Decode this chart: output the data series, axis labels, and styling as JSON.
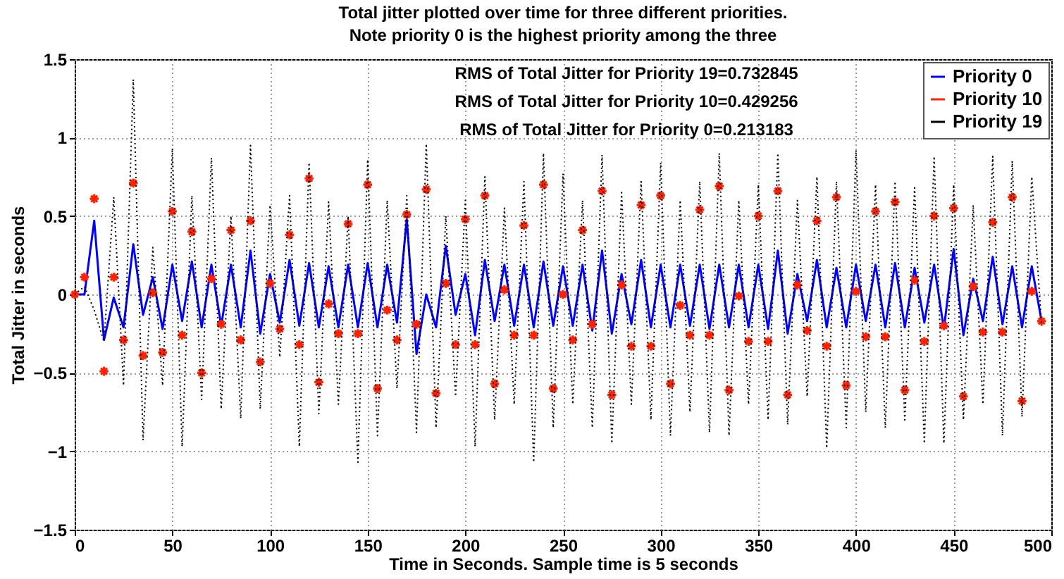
{
  "chart_data": {
    "type": "line",
    "title": "Total jitter plotted over time for three different priorities.\nNote priority 0 is the highest priority among the three",
    "xlabel": "Time in Seconds. Sample time is 5 seconds",
    "ylabel": "Total Jitter in seconds",
    "annotations": [
      "RMS of Total Jitter for Priority 19=0.732845",
      "RMS of Total Jitter for Priority 10=0.429256",
      "RMS of Total Jitter for Priority 0=0.213183"
    ],
    "x": [
      0,
      5,
      10,
      15,
      20,
      25,
      30,
      35,
      40,
      45,
      50,
      55,
      60,
      65,
      70,
      75,
      80,
      85,
      90,
      95,
      100,
      105,
      110,
      115,
      120,
      125,
      130,
      135,
      140,
      145,
      150,
      155,
      160,
      165,
      170,
      175,
      180,
      185,
      190,
      195,
      200,
      205,
      210,
      215,
      220,
      225,
      230,
      235,
      240,
      245,
      250,
      255,
      260,
      265,
      270,
      275,
      280,
      285,
      290,
      295,
      300,
      305,
      310,
      315,
      320,
      325,
      330,
      335,
      340,
      345,
      350,
      355,
      360,
      365,
      370,
      375,
      380,
      385,
      390,
      395,
      400,
      405,
      410,
      415,
      420,
      425,
      430,
      435,
      440,
      445,
      450,
      455,
      460,
      465,
      470,
      475,
      480,
      485,
      490,
      495
    ],
    "series": [
      {
        "name": "Priority 0",
        "color": "#0000ff",
        "type": "line",
        "line_style": "solid",
        "values": [
          0,
          0,
          0.47,
          -0.29,
          -0.02,
          -0.21,
          0.32,
          -0.13,
          0.11,
          -0.22,
          0.19,
          -0.17,
          0.21,
          -0.21,
          0.19,
          -0.2,
          0.19,
          -0.21,
          0.28,
          -0.25,
          0.13,
          -0.18,
          0.22,
          -0.2,
          0.2,
          -0.21,
          0.18,
          -0.21,
          0.19,
          -0.21,
          0.2,
          -0.21,
          0.19,
          -0.18,
          0.48,
          -0.38,
          0,
          -0.21,
          0.31,
          -0.13,
          0.13,
          -0.26,
          0.22,
          -0.17,
          0.19,
          -0.2,
          0.19,
          -0.21,
          0.21,
          -0.2,
          0.18,
          -0.2,
          0.19,
          -0.23,
          0.28,
          -0.25,
          0.13,
          -0.19,
          0.22,
          -0.21,
          0.19,
          -0.21,
          0.19,
          -0.2,
          0.19,
          -0.22,
          0.19,
          -0.21,
          0.19,
          -0.21,
          0.19,
          -0.22,
          0.28,
          -0.25,
          0.13,
          -0.17,
          0.22,
          -0.21,
          0.17,
          -0.21,
          0.19,
          -0.17,
          0.19,
          -0.21,
          0.2,
          -0.21,
          0.17,
          -0.18,
          0.19,
          -0.22,
          0.29,
          -0.26,
          0.1,
          -0.17,
          0.24,
          -0.19,
          0.18,
          -0.21,
          0.18,
          -0.17
        ]
      },
      {
        "name": "Priority 10",
        "color": "#ff2200",
        "type": "scatter",
        "marker": "cross",
        "values": [
          0,
          0.11,
          0.61,
          -0.49,
          0.11,
          -0.29,
          0.71,
          -0.39,
          0.01,
          -0.37,
          0.53,
          -0.26,
          0.4,
          -0.5,
          0.1,
          -0.19,
          0.41,
          -0.29,
          0.47,
          -0.43,
          0.07,
          -0.22,
          0.38,
          -0.32,
          0.74,
          -0.56,
          -0.06,
          -0.25,
          0.45,
          -0.25,
          0.7,
          -0.6,
          -0.1,
          -0.29,
          0.51,
          -0.19,
          0.67,
          -0.63,
          0.07,
          -0.32,
          0.48,
          -0.32,
          0.63,
          -0.57,
          0.03,
          -0.26,
          0.44,
          -0.26,
          0.7,
          -0.6,
          0,
          -0.29,
          0.41,
          -0.19,
          0.66,
          -0.64,
          0.06,
          -0.33,
          0.57,
          -0.33,
          0.63,
          -0.57,
          -0.07,
          -0.26,
          0.54,
          -0.26,
          0.69,
          -0.61,
          -0.01,
          -0.3,
          0.5,
          -0.3,
          0.66,
          -0.64,
          0.06,
          -0.23,
          0.47,
          -0.33,
          0.62,
          -0.58,
          0.02,
          -0.27,
          0.53,
          -0.27,
          0.59,
          -0.61,
          0.09,
          -0.3,
          0.5,
          -0.2,
          0.55,
          -0.65,
          0.05,
          -0.24,
          0.46,
          -0.24,
          0.62,
          -0.68,
          0.02,
          -0.17
        ]
      },
      {
        "name": "Priority 19",
        "color": "#000000",
        "type": "line",
        "line_style": "dotted",
        "values": [
          0,
          0.05,
          -0.1,
          -0.3,
          0.62,
          -0.58,
          1.37,
          -0.93,
          0.3,
          -0.58,
          0.93,
          -0.97,
          0.63,
          -0.67,
          0.87,
          -0.73,
          0.5,
          -0.79,
          0.95,
          -0.73,
          0.57,
          -0.4,
          0.63,
          -0.97,
          0.84,
          -0.76,
          0.59,
          -0.7,
          0.5,
          -1.07,
          0.86,
          -0.9,
          0.6,
          -0.6,
          0.63,
          -0.88,
          0.96,
          -0.85,
          0.5,
          -0.65,
          0.6,
          -0.97,
          0.75,
          -0.8,
          0.55,
          -0.7,
          0.72,
          -1.07,
          0.9,
          -0.85,
          0.77,
          -0.7,
          0.6,
          -0.85,
          0.89,
          -0.95,
          0.65,
          -0.7,
          0.72,
          -0.8,
          0.84,
          -0.9,
          0.6,
          -0.75,
          0.72,
          -0.88,
          0.9,
          -0.9,
          0.6,
          -0.7,
          0.7,
          -0.8,
          0.9,
          -0.83,
          0.6,
          -0.65,
          0.75,
          -0.98,
          0.72,
          -0.85,
          0.92,
          -0.75,
          0.7,
          -0.85,
          0.72,
          -0.8,
          0.68,
          -0.95,
          0.88,
          -0.95,
          0.7,
          -0.8,
          0.57,
          -0.7,
          0.88,
          -0.9,
          0.85,
          -0.78,
          0.75,
          -0.2
        ]
      }
    ],
    "xlim": [
      0,
      500
    ],
    "xticks": [
      0,
      50,
      100,
      150,
      200,
      250,
      300,
      350,
      400,
      450,
      500
    ],
    "ylim": [
      -1.5,
      1.5
    ],
    "yticks": [
      -1.5,
      -1,
      -0.5,
      0,
      0.5,
      1,
      1.5
    ],
    "grid": true,
    "legend": "top right"
  }
}
